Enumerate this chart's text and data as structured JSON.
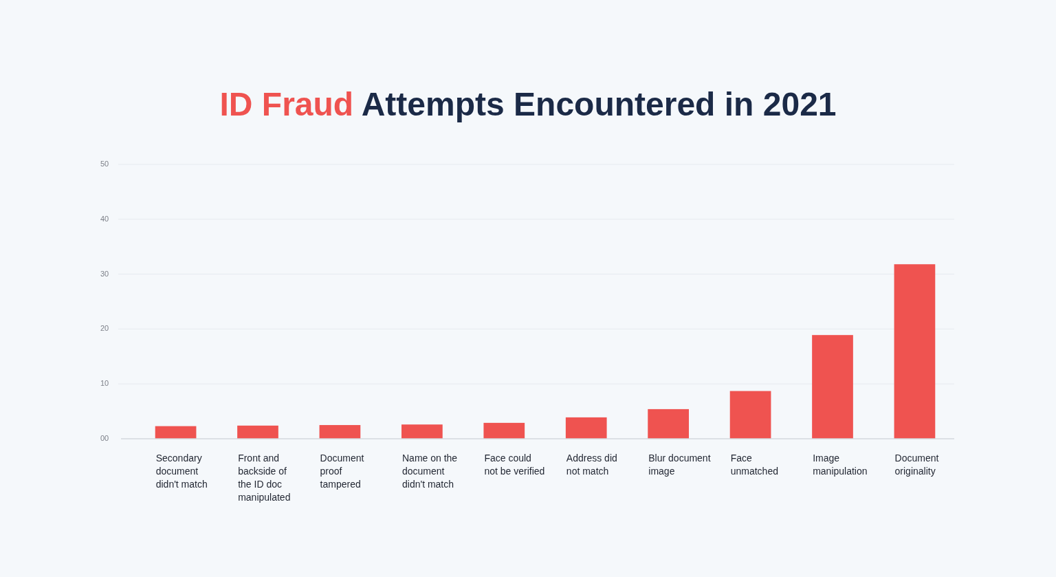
{
  "chart_data": {
    "type": "bar",
    "title": "ID Fraud Attempts Encountered in 2021",
    "categories": [
      "Secondary\ndocument\ndidn't match",
      "Front and\nbackside of\nthe ID doc\nmanipulated",
      "Document\nproof\ntampered",
      "Name on the\ndocument\ndidn't match",
      "Face could\nnot be verified",
      "Address did\nnot match",
      "Blur document\nimage",
      "Face\nunmatched",
      "Image\nmanipulation",
      "Document\noriginality"
    ],
    "values": [
      2.3,
      2.4,
      2.5,
      2.6,
      2.9,
      3.9,
      5.4,
      8.7,
      18.9,
      31.8
    ],
    "color": "#ef5350",
    "ylim": [
      0,
      50
    ],
    "yticks": [
      {
        "value": 0,
        "label": "00"
      },
      10,
      20,
      30,
      40,
      50
    ],
    "grid": "y"
  }
}
